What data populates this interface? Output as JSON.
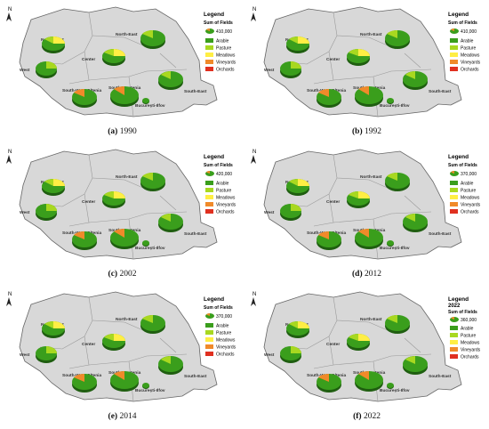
{
  "north_arrow": "N",
  "legend": {
    "title": "Legend",
    "subtitle": "Sum of Fields",
    "items": [
      {
        "label": "Arable",
        "color": "#3a9e1c"
      },
      {
        "label": "Pasture",
        "color": "#a8d820"
      },
      {
        "label": "Meadows",
        "color": "#ffee44"
      },
      {
        "label": "Vineyards",
        "color": "#f08a2a"
      },
      {
        "label": "Orchards",
        "color": "#e03020"
      }
    ]
  },
  "region_labels": [
    "North-West",
    "North-East",
    "Center",
    "West",
    "South-West Oltenia",
    "South-Muntenia",
    "South-East",
    "București-Ilfov"
  ],
  "panels": [
    {
      "letter": "(a)",
      "year": "1990",
      "scale_value": "410,000",
      "legend_year": ""
    },
    {
      "letter": "(b)",
      "year": "1992",
      "scale_value": "410,000",
      "legend_year": ""
    },
    {
      "letter": "(c)",
      "year": "2002",
      "scale_value": "420,000",
      "legend_year": ""
    },
    {
      "letter": "(d)",
      "year": "2012",
      "scale_value": "370,000",
      "legend_year": ""
    },
    {
      "letter": "(e)",
      "year": "2014",
      "scale_value": "370,000",
      "legend_year": ""
    },
    {
      "letter": "(f)",
      "year": "2022",
      "scale_value": "360,000",
      "legend_year": "2022"
    }
  ]
}
